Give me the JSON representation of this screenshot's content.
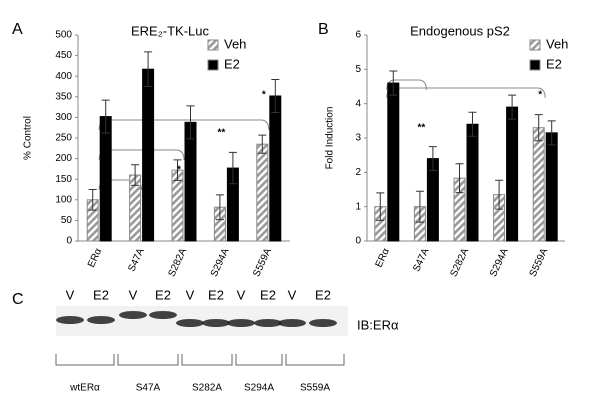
{
  "chart_data": [
    {
      "type": "bar",
      "panel": "A",
      "title": "ERE₂-TK-Luc",
      "y_label": "% Control",
      "categories": [
        "ERα",
        "S47A",
        "S282A",
        "S294A",
        "S559A"
      ],
      "series": [
        {
          "name": "Veh",
          "color": "#9a9a9a",
          "values": [
            100,
            160,
            172,
            82,
            235
          ],
          "errors": [
            25,
            25,
            25,
            30,
            22
          ]
        },
        {
          "name": "E2",
          "color": "#000000",
          "values": [
            302,
            417,
            288,
            177,
            352
          ],
          "errors": [
            40,
            42,
            40,
            38,
            40
          ]
        }
      ],
      "ylim": [
        0,
        500
      ],
      "yticks": [
        0,
        50,
        100,
        150,
        200,
        250,
        300,
        350,
        400,
        450,
        500
      ],
      "grid": false,
      "annotations": [
        "*",
        "**",
        "*"
      ]
    },
    {
      "type": "bar",
      "panel": "B",
      "title": "Endogenous pS2",
      "y_label": "Fold Induction",
      "categories": [
        "ERα",
        "S47A",
        "S282A",
        "S294A",
        "S559A"
      ],
      "series": [
        {
          "name": "Veh",
          "color": "#9a9a9a",
          "values": [
            1,
            1,
            1.83,
            1.35,
            3.3
          ],
          "errors": [
            0.4,
            0.45,
            0.42,
            0.42,
            0.38
          ]
        },
        {
          "name": "E2",
          "color": "#000000",
          "values": [
            4.6,
            2.4,
            3.4,
            3.9,
            3.15
          ],
          "errors": [
            0.35,
            0.35,
            0.35,
            0.35,
            0.35
          ]
        }
      ],
      "ylim": [
        0,
        6
      ],
      "yticks": [
        0,
        1,
        2,
        3,
        4,
        5,
        6
      ],
      "grid": false,
      "annotations": [
        "**",
        "*"
      ]
    }
  ],
  "blot": {
    "panel": "C",
    "lanes": [
      "V",
      "E2",
      "V",
      "E2",
      "V",
      "E2",
      "V",
      "E2",
      "V",
      "E2"
    ],
    "antibody": "IB:ERα",
    "groups": [
      "wtERα",
      "S47A",
      "S282A",
      "S294A",
      "S559A"
    ]
  }
}
